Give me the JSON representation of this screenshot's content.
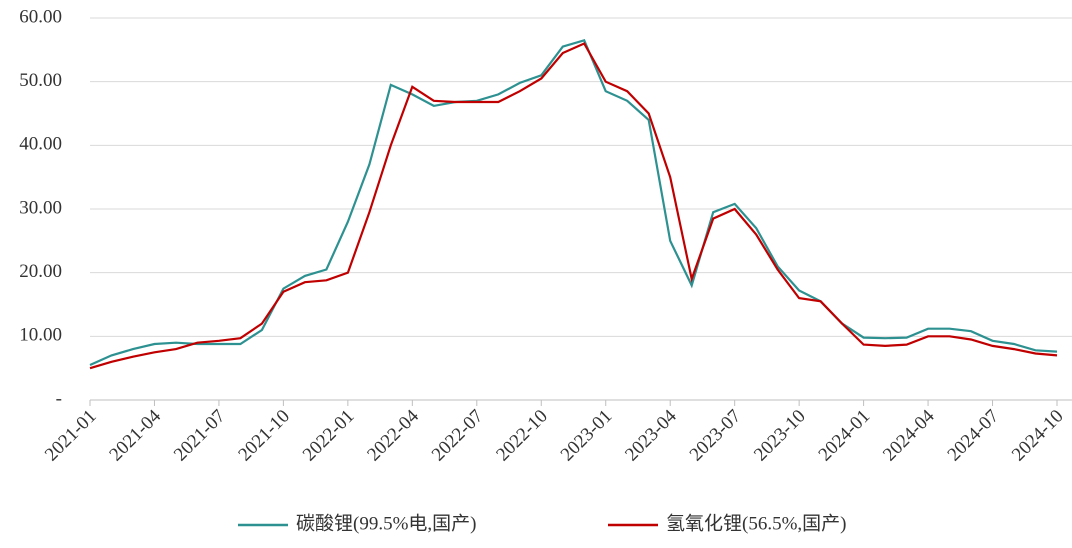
{
  "chart_data": {
    "type": "line",
    "x": [
      "2021-01",
      "2021-02",
      "2021-03",
      "2021-04",
      "2021-05",
      "2021-06",
      "2021-07",
      "2021-08",
      "2021-09",
      "2021-10",
      "2021-11",
      "2021-12",
      "2022-01",
      "2022-02",
      "2022-03",
      "2022-04",
      "2022-05",
      "2022-06",
      "2022-07",
      "2022-08",
      "2022-09",
      "2022-10",
      "2022-11",
      "2022-12",
      "2023-01",
      "2023-02",
      "2023-03",
      "2023-04",
      "2023-05",
      "2023-06",
      "2023-07",
      "2023-08",
      "2023-09",
      "2023-10",
      "2023-11",
      "2023-12",
      "2024-01",
      "2024-02",
      "2024-03",
      "2024-04",
      "2024-05",
      "2024-06",
      "2024-07",
      "2024-08",
      "2024-09",
      "2024-10"
    ],
    "series": [
      {
        "name": "碳酸锂(99.5%电,国产)",
        "color": "#2e9191",
        "values": [
          5.5,
          7,
          8,
          8.8,
          9,
          8.8,
          8.8,
          8.8,
          11,
          17.5,
          19.5,
          20.5,
          28,
          37,
          49.5,
          48,
          46.2,
          46.8,
          47,
          48,
          49.8,
          51,
          55.5,
          56.5,
          48.5,
          47,
          44,
          25,
          18,
          29.5,
          30.8,
          27,
          21,
          17.2,
          15.5,
          12,
          9.8,
          9.7,
          9.8,
          11.2,
          11.2,
          10.8,
          9.3,
          8.8,
          7.8,
          7.6
        ]
      },
      {
        "name": "氢氧化锂(56.5%,国产)",
        "color": "#c00000",
        "values": [
          5,
          6,
          6.8,
          7.5,
          8,
          9,
          9.3,
          9.7,
          12,
          17,
          18.5,
          18.8,
          20,
          29.5,
          40,
          49.2,
          47,
          46.8,
          46.8,
          46.8,
          48.5,
          50.5,
          54.5,
          56,
          50,
          48.5,
          45,
          35,
          19,
          28.5,
          30,
          26,
          20.5,
          16,
          15.5,
          12,
          8.7,
          8.5,
          8.7,
          10,
          10,
          9.5,
          8.5,
          8,
          7.3,
          7
        ]
      }
    ],
    "xlim": [
      "2021-01",
      "2024-10"
    ],
    "xticks": [
      "2021-01",
      "2021-04",
      "2021-07",
      "2021-10",
      "2022-01",
      "2022-04",
      "2022-07",
      "2022-10",
      "2023-01",
      "2023-04",
      "2023-07",
      "2023-10",
      "2024-01",
      "2024-04",
      "2024-07",
      "2024-10"
    ],
    "ylim": [
      0,
      60
    ],
    "yticks": [
      {
        "value": 0,
        "label": "-"
      },
      {
        "value": 10,
        "label": "10.00"
      },
      {
        "value": 20,
        "label": "20.00"
      },
      {
        "value": 30,
        "label": "30.00"
      },
      {
        "value": 40,
        "label": "40.00"
      },
      {
        "value": 50,
        "label": "50.00"
      },
      {
        "value": 60,
        "label": "60.00"
      }
    ],
    "grid": true,
    "legend": "bottom"
  }
}
